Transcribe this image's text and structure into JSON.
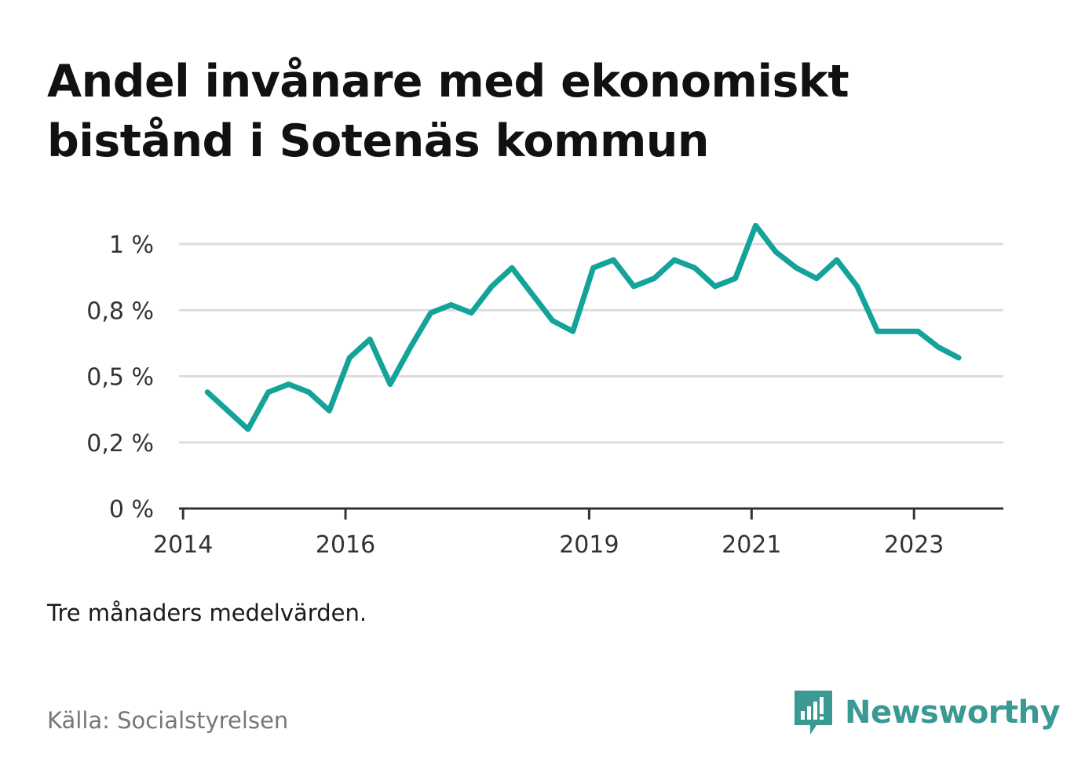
{
  "title": "Andel invånare med ekonomiskt bistånd i Sotenäs kommun",
  "note": "Tre månaders medelvärden.",
  "source": "Källa: Socialstyrelsen",
  "brand": {
    "name": "Newsworthy",
    "icon": "newsworthy-logo-icon",
    "color": "#3a9a93"
  },
  "colors": {
    "line": "#14a39a",
    "grid": "#dddddd",
    "axis": "#333333"
  },
  "chart_data": {
    "type": "line",
    "title": "Andel invånare med ekonomiskt bistånd i Sotenäs kommun",
    "xlabel": "",
    "ylabel": "",
    "ylim": [
      0,
      1.0
    ],
    "grid": true,
    "y_ticks": [
      {
        "value": 0,
        "label": "0 %"
      },
      {
        "value": 0.25,
        "label": "0,2 %"
      },
      {
        "value": 0.5,
        "label": "0,5 %"
      },
      {
        "value": 0.75,
        "label": "0,8 %"
      },
      {
        "value": 1.0,
        "label": "1 %"
      }
    ],
    "x_ticks": [
      {
        "value": 2014,
        "label": "2014"
      },
      {
        "value": 2016,
        "label": "2016"
      },
      {
        "value": 2019,
        "label": "2019"
      },
      {
        "value": 2021,
        "label": "2021"
      },
      {
        "value": 2023,
        "label": "2023"
      }
    ],
    "xlim": [
      2013.95,
      2024.1
    ],
    "series": [
      {
        "x": [
          2014.3,
          2014.55,
          2014.8,
          2015.05,
          2015.3,
          2015.55,
          2015.8,
          2016.05,
          2016.3,
          2016.55,
          2016.8,
          2017.05,
          2017.3,
          2017.55,
          2017.8,
          2018.05,
          2018.3,
          2018.55,
          2018.8,
          2019.05,
          2019.3,
          2019.55,
          2019.8,
          2020.05,
          2020.3,
          2020.55,
          2020.8,
          2021.05,
          2021.3,
          2021.55,
          2021.8,
          2022.05,
          2022.3,
          2022.55,
          2022.8,
          2023.05,
          2023.3,
          2023.55
        ],
        "values": [
          0.44,
          0.37,
          0.3,
          0.44,
          0.47,
          0.44,
          0.37,
          0.57,
          0.64,
          0.47,
          0.61,
          0.74,
          0.77,
          0.74,
          0.84,
          0.91,
          0.81,
          0.71,
          0.67,
          0.91,
          0.94,
          0.84,
          0.87,
          0.94,
          0.91,
          0.84,
          0.87,
          1.07,
          0.97,
          0.91,
          0.87,
          0.94,
          0.84,
          0.67,
          0.67,
          0.67,
          0.61,
          0.57
        ]
      }
    ]
  }
}
